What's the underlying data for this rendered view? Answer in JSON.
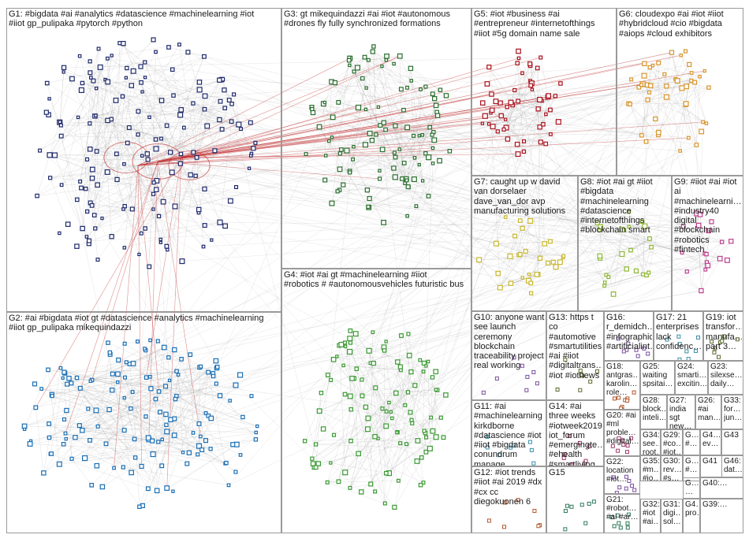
{
  "colors": {
    "G1": "#1f2a6b",
    "G2": "#1a6fb5",
    "G3": "#2a6e2f",
    "G4": "#3b9a33",
    "G5": "#a8121e",
    "G6": "#d9952a",
    "G7": "#c9b82e",
    "G8": "#8fb832",
    "G9": "#c03f8f",
    "edge": "#8a8a8a",
    "red_edge": "#c0282a"
  },
  "groups": [
    {
      "id": "G1",
      "label": "G1: #bigdata #ai #analytics #datascience #machinelearning #iot\n#iiot gp_pulipaka #pytorch #python"
    },
    {
      "id": "G2",
      "label": "G2: #ai #bigdata #iot gt #datascience #analytics #machinelearning\n#iiot gp_pulipaka mikequindazzi"
    },
    {
      "id": "G3",
      "label": "G3: gt mikequindazzi #ai #iot #autonomous\n#drones fly fully synchronized formations"
    },
    {
      "id": "G4",
      "label": "G4: #iot #ai gt #machinelearning #iiot\n#robotics # #autonomousvehicles futuristic bus"
    },
    {
      "id": "G5",
      "label": "G5: #iot #business #ai\n#entrepreneur #internetofthings\n#iiot #5g domain name sale"
    },
    {
      "id": "G6",
      "label": "G6: cloudexpo #ai #iot #iiot\n#hybridcloud #cio #bigdata\n#aiops #cloud exhibitors"
    },
    {
      "id": "G7",
      "label": "G7: caught up w david\nvan dorselaer\ndave_van_dor avp\nmanufacturing solutions"
    },
    {
      "id": "G8",
      "label": "G8: #iot #ai gt #iiot\n#bigdata\n#machinelearning\n#datascience\n#internetofthings\n#blockchain smart"
    },
    {
      "id": "G9",
      "label": "G9: #iiot #ai #iot\nai\n#machinelearni…\n#industry40\ndigital\n#blockchain\n#robotics\n#fintech"
    },
    {
      "id": "G10",
      "label": "G10: anyone want\nsee launch\nceremony\nblockchain\ntraceability project\nreal working"
    },
    {
      "id": "G11",
      "label": "G11: #ai\n#machinelearning\nkirkdborne\n#datascience #iot\n#iiot #bigdata\nconundrum\nmanage"
    },
    {
      "id": "G12",
      "label": "G12: #iot trends\n#iiot #ai 2019 #dx\n#cx cc\ndiegokuonen 6"
    },
    {
      "id": "G13",
      "label": "G13: https t\nco\n#automotive\n#smartutilities\n#ai #iiot\n#digitaltrans…\n#iot #iotnews"
    },
    {
      "id": "G14",
      "label": "G14: #ai\nthree weeks\n#iotweek2019\niot_forum\n#emergingte…\n#ehealth\n#smartliving…"
    },
    {
      "id": "G15",
      "label": "G15"
    },
    {
      "id": "G16",
      "label": "G16:\nr_demidch…\n#infographic\n#artificialint…"
    },
    {
      "id": "G17",
      "label": "G17: 21\nenterprises\nlack\nconfidenc…"
    },
    {
      "id": "G18",
      "label": "G18:\nantgras…\nkarolin…\nrole…"
    },
    {
      "id": "G19",
      "label": "G19: iot\ntransfor…\nmanufa…\npart 3…"
    },
    {
      "id": "G20",
      "label": "G20: #ai\n#ml\nproble…\n#digital…"
    },
    {
      "id": "G21",
      "label": "G21:\n#robot…\n#ai #ar…"
    },
    {
      "id": "G22",
      "label": "G22:\nlocation\n#iot…"
    },
    {
      "id": "G23",
      "label": "G23:\nsilexse…\ndaily…"
    },
    {
      "id": "G24",
      "label": "G24:\nsmarti…\nexcitin…"
    },
    {
      "id": "G25",
      "label": "G25:\nwaiting\nspsitai…"
    },
    {
      "id": "G26",
      "label": "G26:\n#ai\nman…"
    },
    {
      "id": "G27",
      "label": "G27:\nindia sgt\nnew…"
    },
    {
      "id": "G28",
      "label": "G28:\nblock…\ninteli…"
    },
    {
      "id": "G29",
      "label": "G29:\n#co…\n#iot…"
    },
    {
      "id": "G30",
      "label": "G30:\nrev…\n#s…"
    },
    {
      "id": "G31",
      "label": "G31:\ndigi…\nsol…"
    },
    {
      "id": "G32",
      "label": "G32:\n#iot\n#ai…"
    },
    {
      "id": "G33",
      "label": "G33:\nfor…\njun…"
    },
    {
      "id": "G34",
      "label": "G34:\nsee…\nroot…"
    },
    {
      "id": "G35",
      "label": "G35:\n#m…\n#io…"
    },
    {
      "id": "G36",
      "label": "G…\n#…"
    },
    {
      "id": "G37",
      "label": "G…\n#…"
    },
    {
      "id": "G38",
      "label": "G…\n…"
    },
    {
      "id": "G39",
      "label": "G39:…"
    },
    {
      "id": "G40",
      "label": "G40:…"
    },
    {
      "id": "G41",
      "label": "G41"
    },
    {
      "id": "G42",
      "label": "G4…\nev…"
    },
    {
      "id": "G43",
      "label": "G43"
    },
    {
      "id": "G44",
      "label": "G4…\npro…"
    },
    {
      "id": "G45",
      "label": "G4…\ndat…"
    },
    {
      "id": "G46",
      "label": "G46:\ndat…"
    },
    {
      "id": "G47",
      "label": "G4…\n…"
    }
  ]
}
